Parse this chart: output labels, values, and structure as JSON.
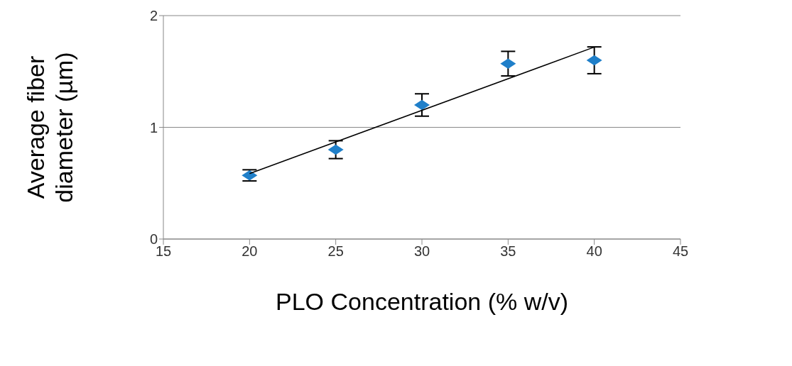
{
  "chart_data": {
    "type": "scatter",
    "xlabel": "PLO Concentration (% w/v)",
    "ylabel": "Average fiber diameter (µm)",
    "xlim": [
      15,
      45
    ],
    "xticks": [
      15,
      20,
      25,
      30,
      35,
      40,
      45
    ],
    "ylim": [
      0,
      2
    ],
    "yticks": [
      0,
      1,
      2
    ],
    "grid": "y",
    "marker": "diamond",
    "legend": false,
    "series": [
      {
        "color": "#1f7fc9",
        "x": [
          20,
          25,
          30,
          35,
          40
        ],
        "values": [
          0.57,
          0.8,
          1.2,
          1.57,
          1.6
        ],
        "errors": [
          0.05,
          0.08,
          0.1,
          0.11,
          0.12
        ]
      },
      {
        "type": "line",
        "color": "#000000",
        "marker": "none",
        "x": [
          20,
          40
        ],
        "values": [
          0.586,
          1.718
        ]
      }
    ]
  }
}
